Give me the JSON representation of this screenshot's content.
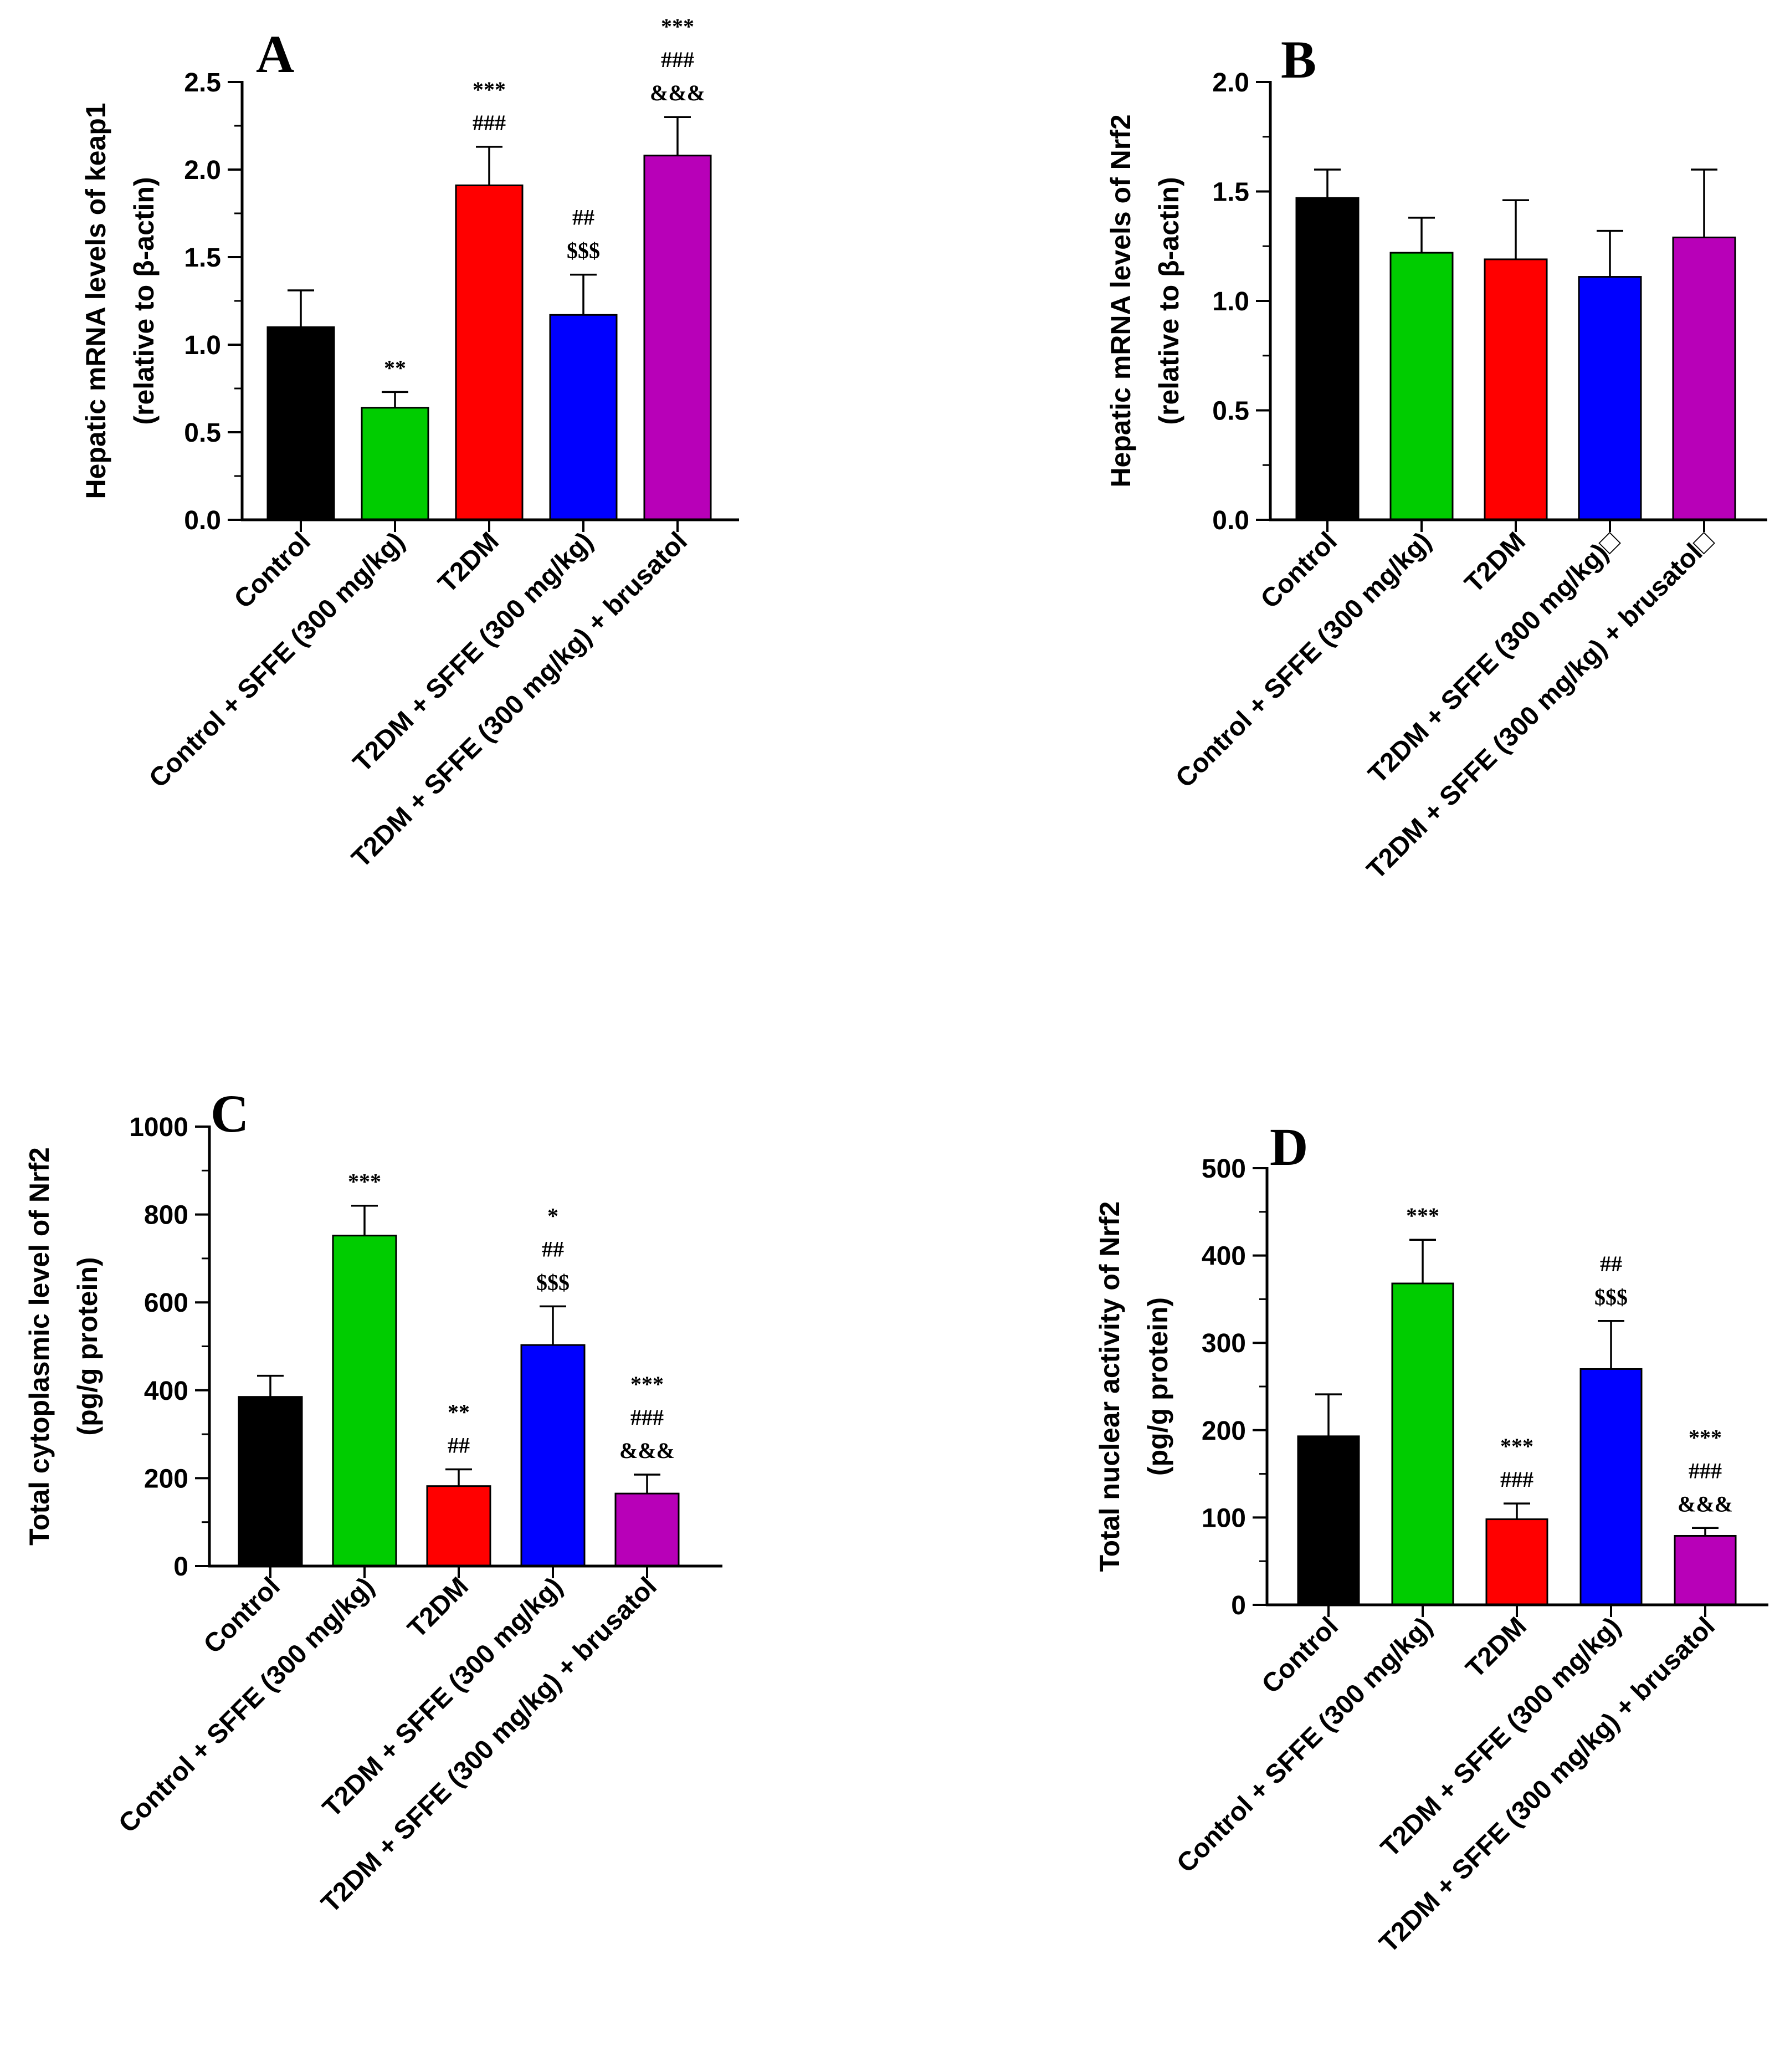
{
  "chart_data": [
    {
      "type": "bar",
      "panel_label": "A",
      "ylabel_lines": [
        "Hepatic mRNA levels of keap1",
        "(relative to β-actin)"
      ],
      "categories": [
        "Control",
        "Control + SFFE (300 mg/kg)",
        "T2DM",
        "T2DM + SFFE (300 mg/kg)",
        "T2DM + SFFE (300 mg/kg) + brusatol"
      ],
      "values": [
        1.1,
        0.64,
        1.91,
        1.17,
        2.08
      ],
      "errors": [
        0.21,
        0.09,
        0.22,
        0.23,
        0.22
      ],
      "colors": [
        "#000000",
        "#00cc00",
        "#ff0000",
        "#0000ff",
        "#b800b8"
      ],
      "ylim": [
        0,
        2.5
      ],
      "yticks": [
        "0.0",
        "0.5",
        "1.0",
        "1.5",
        "2.0",
        "2.5"
      ],
      "annotations": [
        [],
        [
          "**"
        ],
        [
          "***",
          "###"
        ],
        [
          "##",
          "$$$"
        ],
        [
          "***",
          "###",
          "&&&"
        ]
      ]
    },
    {
      "type": "bar",
      "panel_label": "B",
      "ylabel_lines": [
        "Hepatic mRNA levels of Nrf2",
        "(relative to β-actin)"
      ],
      "categories": [
        "Control",
        "Control + SFFE (300 mg/kg)",
        "T2DM",
        "T2DM + SFFE (300 mg/kg)□",
        "T2DM + SFFE (300 mg/kg) + brusatol□"
      ],
      "values": [
        1.47,
        1.22,
        1.19,
        1.11,
        1.29
      ],
      "errors": [
        0.13,
        0.16,
        0.27,
        0.21,
        0.31
      ],
      "colors": [
        "#000000",
        "#00cc00",
        "#ff0000",
        "#0000ff",
        "#b800b8"
      ],
      "ylim": [
        0,
        2.0
      ],
      "yticks": [
        "0.0",
        "0.5",
        "1.0",
        "1.5",
        "2.0"
      ],
      "annotations": [
        [],
        [],
        [],
        [],
        []
      ]
    },
    {
      "type": "bar",
      "panel_label": "C",
      "ylabel_lines": [
        "Total cytoplasmic level of Nrf2",
        "(pg/g protein)"
      ],
      "categories": [
        "Control",
        "Control + SFFE (300 mg/kg)",
        "T2DM",
        "T2DM + SFFE (300 mg/kg)",
        "T2DM + SFFE (300 mg/kg) + brusatol"
      ],
      "values": [
        385,
        752,
        182,
        503,
        165
      ],
      "errors": [
        48,
        68,
        38,
        88,
        43
      ],
      "colors": [
        "#000000",
        "#00cc00",
        "#ff0000",
        "#0000ff",
        "#b800b8"
      ],
      "ylim": [
        0,
        1000
      ],
      "yticks": [
        "0",
        "200",
        "400",
        "600",
        "800",
        "1000"
      ],
      "annotations": [
        [],
        [
          "***"
        ],
        [
          "**",
          "##"
        ],
        [
          "*",
          "##",
          "$$$"
        ],
        [
          "***",
          "###",
          "&&&"
        ]
      ]
    },
    {
      "type": "bar",
      "panel_label": "D",
      "ylabel_lines": [
        "Total nuclear activity of Nrf2",
        "(pg/g protein)"
      ],
      "categories": [
        "Control",
        "Control + SFFE (300 mg/kg)",
        "T2DM",
        "T2DM + SFFE (300 mg/kg)",
        "T2DM + SFFE (300 mg/kg) + brusatol"
      ],
      "values": [
        193,
        368,
        98,
        270,
        79
      ],
      "errors": [
        48,
        50,
        18,
        55,
        9
      ],
      "colors": [
        "#000000",
        "#00cc00",
        "#ff0000",
        "#0000ff",
        "#b800b8"
      ],
      "ylim": [
        0,
        500
      ],
      "yticks": [
        "0",
        "100",
        "200",
        "300",
        "400",
        "500"
      ],
      "annotations": [
        [],
        [
          "***"
        ],
        [
          "***",
          "###"
        ],
        [
          "##",
          "$$$"
        ],
        [
          "***",
          "###",
          "&&&"
        ]
      ]
    }
  ]
}
